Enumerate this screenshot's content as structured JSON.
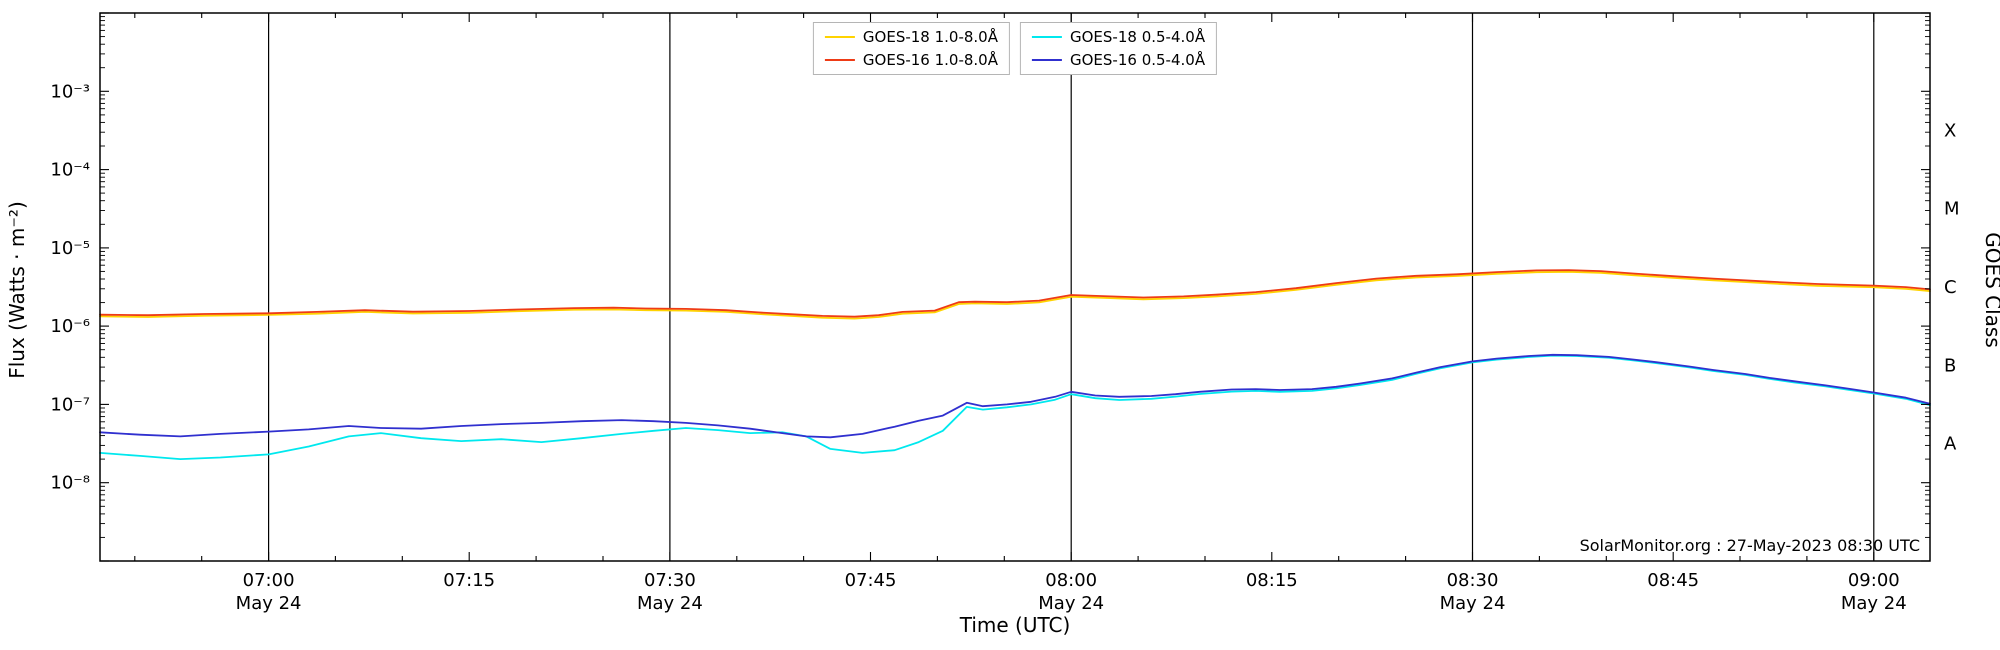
{
  "figure": {
    "annotation": "SolarMonitor.org : 27-May-2023 08:30 UTC",
    "background": "#ffffff",
    "axis_color": "#000000"
  },
  "chart_data": {
    "type": "line",
    "title": "",
    "xlabel": "Time (UTC)",
    "ylabel": "Flux (Watts · m⁻²)",
    "ylabel_right": "GOES Class",
    "x_unit": "decimal_hours_utc",
    "xlim": [
      6.79,
      9.07
    ],
    "ylim_log10": [
      -9,
      -2
    ],
    "grid": "vertical-solid-black-at-half-hours",
    "legend_position": "top-center",
    "x_gridlines": [
      7.0,
      7.5,
      8.0,
      8.5,
      9.0
    ],
    "x_major_ticks": [
      {
        "t": 7.0,
        "label": "07:00",
        "date": "May 24"
      },
      {
        "t": 7.25,
        "label": "07:15"
      },
      {
        "t": 7.5,
        "label": "07:30",
        "date": "May 24"
      },
      {
        "t": 7.75,
        "label": "07:45"
      },
      {
        "t": 8.0,
        "label": "08:00",
        "date": "May 24"
      },
      {
        "t": 8.25,
        "label": "08:15"
      },
      {
        "t": 8.5,
        "label": "08:30",
        "date": "May 24"
      },
      {
        "t": 8.75,
        "label": "08:45"
      },
      {
        "t": 9.0,
        "label": "09:00",
        "date": "May 24"
      }
    ],
    "y_ticks": [
      {
        "log10": -3,
        "label": "10⁻³"
      },
      {
        "log10": -4,
        "label": "10⁻⁴"
      },
      {
        "log10": -5,
        "label": "10⁻⁵"
      },
      {
        "log10": -6,
        "label": "10⁻⁶"
      },
      {
        "log10": -7,
        "label": "10⁻⁷"
      },
      {
        "log10": -8,
        "label": "10⁻⁸"
      }
    ],
    "goes_classes": [
      {
        "label": "X",
        "log10": -3.5
      },
      {
        "label": "M",
        "log10": -4.5
      },
      {
        "label": "C",
        "log10": -5.5
      },
      {
        "label": "B",
        "log10": -6.5
      },
      {
        "label": "A",
        "log10": -7.5
      }
    ],
    "series": [
      {
        "name": "GOES-18 1.0-8.0Å",
        "color": "#ffd300",
        "x": [
          6.79,
          6.85,
          6.92,
          7.0,
          7.06,
          7.12,
          7.18,
          7.25,
          7.31,
          7.38,
          7.43,
          7.47,
          7.52,
          7.57,
          7.61,
          7.65,
          7.69,
          7.73,
          7.76,
          7.79,
          7.83,
          7.86,
          7.88,
          7.92,
          7.96,
          8.0,
          8.04,
          8.09,
          8.14,
          8.18,
          8.23,
          8.28,
          8.33,
          8.38,
          8.43,
          8.48,
          8.53,
          8.58,
          8.62,
          8.66,
          8.7,
          8.75,
          8.8,
          8.87,
          8.93,
          9.0,
          9.04,
          9.07
        ],
        "y": [
          1.33e-06,
          1.31e-06,
          1.36e-06,
          1.39e-06,
          1.44e-06,
          1.52e-06,
          1.45e-06,
          1.48e-06,
          1.55e-06,
          1.62e-06,
          1.63e-06,
          1.6e-06,
          1.58e-06,
          1.52e-06,
          1.43e-06,
          1.35e-06,
          1.28e-06,
          1.25e-06,
          1.31e-06,
          1.44e-06,
          1.5e-06,
          1.92e-06,
          1.95e-06,
          1.92e-06,
          2.01e-06,
          2.38e-06,
          2.3e-06,
          2.2e-06,
          2.28e-06,
          2.39e-06,
          2.58e-06,
          2.9e-06,
          3.37e-06,
          3.85e-06,
          4.18e-06,
          4.37e-06,
          4.66e-06,
          4.89e-06,
          4.94e-06,
          4.8e-06,
          4.47e-06,
          4.13e-06,
          3.85e-06,
          3.52e-06,
          3.28e-06,
          3.14e-06,
          2.99e-06,
          2.8e-06
        ]
      },
      {
        "name": "GOES-16 1.0-8.0Å",
        "color": "#ee3b16",
        "x": [
          6.79,
          6.85,
          6.92,
          7.0,
          7.06,
          7.12,
          7.18,
          7.25,
          7.31,
          7.38,
          7.43,
          7.47,
          7.52,
          7.57,
          7.61,
          7.65,
          7.69,
          7.73,
          7.76,
          7.79,
          7.83,
          7.86,
          7.88,
          7.92,
          7.96,
          8.0,
          8.04,
          8.09,
          8.14,
          8.18,
          8.23,
          8.28,
          8.33,
          8.38,
          8.43,
          8.48,
          8.53,
          8.58,
          8.62,
          8.66,
          8.7,
          8.75,
          8.8,
          8.87,
          8.93,
          9.0,
          9.04,
          9.07
        ],
        "y": [
          1.4e-06,
          1.38e-06,
          1.43e-06,
          1.46e-06,
          1.52e-06,
          1.6e-06,
          1.53e-06,
          1.56e-06,
          1.63e-06,
          1.7e-06,
          1.72e-06,
          1.68e-06,
          1.66e-06,
          1.6e-06,
          1.5e-06,
          1.42e-06,
          1.35e-06,
          1.32e-06,
          1.38e-06,
          1.52e-06,
          1.58e-06,
          2.02e-06,
          2.05e-06,
          2.02e-06,
          2.12e-06,
          2.5e-06,
          2.42e-06,
          2.32e-06,
          2.4e-06,
          2.52e-06,
          2.72e-06,
          3.05e-06,
          3.55e-06,
          4.05e-06,
          4.4e-06,
          4.6e-06,
          4.9e-06,
          5.15e-06,
          5.2e-06,
          5.05e-06,
          4.7e-06,
          4.35e-06,
          4.05e-06,
          3.7e-06,
          3.45e-06,
          3.3e-06,
          3.15e-06,
          2.95e-06
        ]
      },
      {
        "name": "GOES-18 0.5-4.0Å",
        "color": "#00e8ee",
        "x": [
          6.79,
          6.84,
          6.89,
          6.94,
          7.0,
          7.05,
          7.1,
          7.14,
          7.19,
          7.24,
          7.29,
          7.34,
          7.39,
          7.44,
          7.48,
          7.52,
          7.56,
          7.6,
          7.64,
          7.67,
          7.7,
          7.74,
          7.78,
          7.81,
          7.84,
          7.87,
          7.89,
          7.92,
          7.95,
          7.98,
          8.0,
          8.03,
          8.06,
          8.1,
          8.13,
          8.16,
          8.2,
          8.23,
          8.26,
          8.3,
          8.33,
          8.36,
          8.4,
          8.43,
          8.46,
          8.5,
          8.53,
          8.57,
          8.6,
          8.63,
          8.67,
          8.7,
          8.73,
          8.77,
          8.8,
          8.84,
          8.87,
          8.9,
          8.94,
          8.97,
          9.0,
          9.04,
          9.07
        ],
        "y": [
          2.4e-08,
          2.2e-08,
          2e-08,
          2.1e-08,
          2.3e-08,
          2.9e-08,
          3.9e-08,
          4.3e-08,
          3.7e-08,
          3.4e-08,
          3.6e-08,
          3.3e-08,
          3.7e-08,
          4.2e-08,
          4.6e-08,
          5e-08,
          4.7e-08,
          4.3e-08,
          4.4e-08,
          3.9e-08,
          2.7e-08,
          2.4e-08,
          2.6e-08,
          3.3e-08,
          4.6e-08,
          9.3e-08,
          8.6e-08,
          9.2e-08,
          1e-07,
          1.15e-07,
          1.35e-07,
          1.2e-07,
          1.14e-07,
          1.18e-07,
          1.26e-07,
          1.36e-07,
          1.46e-07,
          1.49e-07,
          1.45e-07,
          1.49e-07,
          1.6e-07,
          1.77e-07,
          2.06e-07,
          2.46e-07,
          2.9e-07,
          3.44e-07,
          3.74e-07,
          4.04e-07,
          4.2e-07,
          4.15e-07,
          3.95e-07,
          3.65e-07,
          3.36e-07,
          2.97e-07,
          2.67e-07,
          2.38e-07,
          2.12e-07,
          1.92e-07,
          1.7e-07,
          1.53e-07,
          1.38e-07,
          1.18e-07,
          9.8e-08
        ]
      },
      {
        "name": "GOES-16 0.5-4.0Å",
        "color": "#3030cf",
        "x": [
          6.79,
          6.84,
          6.89,
          6.94,
          7.0,
          7.05,
          7.1,
          7.14,
          7.19,
          7.24,
          7.29,
          7.34,
          7.39,
          7.44,
          7.48,
          7.52,
          7.56,
          7.6,
          7.64,
          7.67,
          7.7,
          7.74,
          7.78,
          7.81,
          7.84,
          7.87,
          7.89,
          7.92,
          7.95,
          7.98,
          8.0,
          8.03,
          8.06,
          8.1,
          8.13,
          8.16,
          8.2,
          8.23,
          8.26,
          8.3,
          8.33,
          8.36,
          8.4,
          8.43,
          8.46,
          8.5,
          8.53,
          8.57,
          8.6,
          8.63,
          8.67,
          8.7,
          8.73,
          8.77,
          8.8,
          8.84,
          8.87,
          8.9,
          8.94,
          8.97,
          9.0,
          9.04,
          9.07
        ],
        "y": [
          4.4e-08,
          4.1e-08,
          3.9e-08,
          4.2e-08,
          4.5e-08,
          4.8e-08,
          5.3e-08,
          5e-08,
          4.9e-08,
          5.3e-08,
          5.6e-08,
          5.8e-08,
          6.1e-08,
          6.3e-08,
          6.1e-08,
          5.8e-08,
          5.4e-08,
          4.9e-08,
          4.3e-08,
          3.9e-08,
          3.8e-08,
          4.2e-08,
          5.2e-08,
          6.2e-08,
          7.2e-08,
          1.05e-07,
          9.5e-08,
          1e-07,
          1.08e-07,
          1.25e-07,
          1.45e-07,
          1.3e-07,
          1.25e-07,
          1.28e-07,
          1.35e-07,
          1.45e-07,
          1.55e-07,
          1.57e-07,
          1.53e-07,
          1.57e-07,
          1.68e-07,
          1.85e-07,
          2.15e-07,
          2.55e-07,
          3e-07,
          3.55e-07,
          3.85e-07,
          4.15e-07,
          4.3e-07,
          4.25e-07,
          4.05e-07,
          3.75e-07,
          3.45e-07,
          3.05e-07,
          2.75e-07,
          2.45e-07,
          2.18e-07,
          1.98e-07,
          1.75e-07,
          1.58e-07,
          1.42e-07,
          1.22e-07,
          1.02e-07
        ]
      }
    ]
  }
}
